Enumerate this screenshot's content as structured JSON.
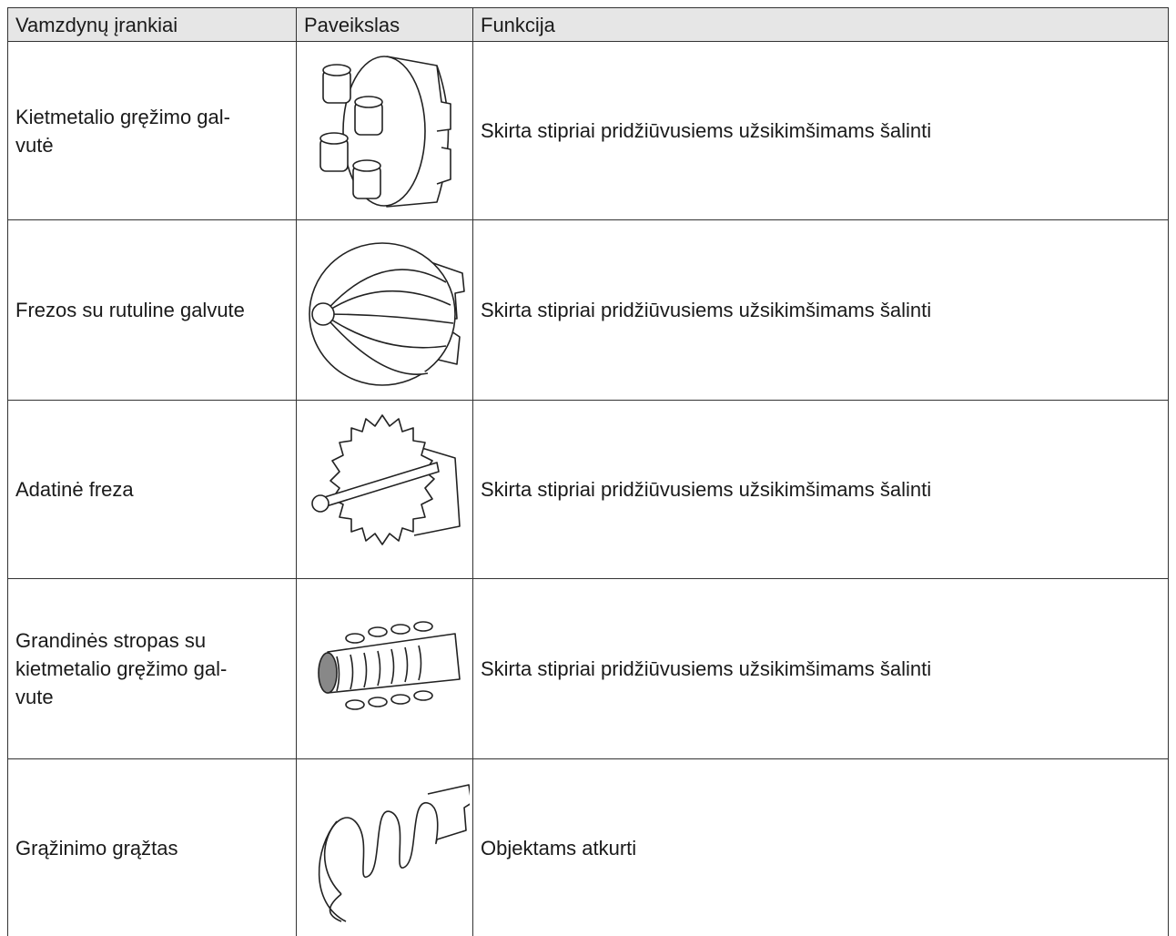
{
  "table": {
    "header": [
      "Vamzdynų įrankiai",
      "Paveikslas",
      "Funkcija"
    ],
    "rows": [
      {
        "tool": "Kietmetalio gręžimo gal-\nvutė",
        "function": "Skirta stipriai pridžiūvusiems užsikimšimams šalinti"
      },
      {
        "tool": "Frezos su rutuline galvute",
        "function": "Skirta stipriai pridžiūvusiems užsikimšimams šalinti"
      },
      {
        "tool": "Adatinė freza",
        "function": "Skirta stipriai pridžiūvusiems užsikimšimams šalinti"
      },
      {
        "tool": "Grandinės stropas su\nkietmetalio gręžimo gal-\nvute",
        "function": "Skirta stipriai pridžiūvusiems užsikimšimams šalinti"
      },
      {
        "tool": "Grąžinimo grąžtas",
        "function": "Objektams atkurti"
      }
    ]
  }
}
